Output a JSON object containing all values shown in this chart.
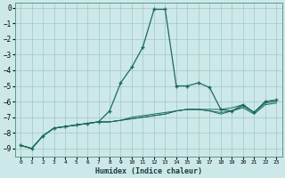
{
  "xlabel": "Humidex (Indice chaleur)",
  "ylabel": "",
  "bg_color": "#cde8e8",
  "grid_color": "#a0c8c8",
  "line_color": "#1a6b5a",
  "xlim": [
    -0.5,
    23.5
  ],
  "ylim": [
    -9.5,
    0.3
  ],
  "yticks": [
    0,
    -1,
    -2,
    -3,
    -4,
    -5,
    -6,
    -7,
    -8,
    -9
  ],
  "xticks": [
    0,
    1,
    2,
    3,
    4,
    5,
    6,
    7,
    8,
    9,
    10,
    11,
    12,
    13,
    14,
    15,
    16,
    17,
    18,
    19,
    20,
    21,
    22,
    23
  ],
  "series": [
    {
      "x": [
        0,
        1,
        2,
        3,
        4,
        5,
        6,
        7,
        8,
        9,
        10,
        11,
        12,
        13,
        14,
        15,
        16,
        17,
        18,
        19,
        20,
        21,
        22,
        23
      ],
      "y": [
        -8.8,
        -9.0,
        -8.2,
        -7.7,
        -7.6,
        -7.5,
        -7.4,
        -7.3,
        -6.6,
        -4.8,
        -3.8,
        -2.5,
        -0.1,
        -0.1,
        -5.0,
        -5.0,
        -4.8,
        -5.1,
        -6.5,
        -6.6,
        -6.2,
        -6.7,
        -6.0,
        -5.9
      ],
      "marker": true
    },
    {
      "x": [
        0,
        1,
        2,
        3,
        4,
        5,
        6,
        7,
        8,
        9,
        10,
        11,
        12,
        13,
        14,
        15,
        16,
        17,
        18,
        19,
        20,
        21,
        22,
        23
      ],
      "y": [
        -8.8,
        -9.0,
        -8.2,
        -7.7,
        -7.6,
        -7.5,
        -7.4,
        -7.3,
        -7.3,
        -7.2,
        -7.1,
        -7.0,
        -6.9,
        -6.8,
        -6.6,
        -6.5,
        -6.5,
        -6.5,
        -6.5,
        -6.4,
        -6.2,
        -6.7,
        -6.0,
        -5.9
      ],
      "marker": false
    },
    {
      "x": [
        0,
        1,
        2,
        3,
        4,
        5,
        6,
        7,
        8,
        9,
        10,
        11,
        12,
        13,
        14,
        15,
        16,
        17,
        18,
        19,
        20,
        21,
        22,
        23
      ],
      "y": [
        -8.8,
        -9.0,
        -8.2,
        -7.7,
        -7.6,
        -7.5,
        -7.4,
        -7.3,
        -7.3,
        -7.2,
        -7.1,
        -7.0,
        -6.9,
        -6.8,
        -6.6,
        -6.5,
        -6.5,
        -6.6,
        -6.7,
        -6.6,
        -6.3,
        -6.7,
        -6.1,
        -6.0
      ],
      "marker": false
    },
    {
      "x": [
        0,
        1,
        2,
        3,
        4,
        5,
        6,
        7,
        8,
        9,
        10,
        11,
        12,
        13,
        14,
        15,
        16,
        17,
        18,
        19,
        20,
        21,
        22,
        23
      ],
      "y": [
        -8.8,
        -9.0,
        -8.2,
        -7.7,
        -7.6,
        -7.5,
        -7.4,
        -7.3,
        -7.3,
        -7.2,
        -7.0,
        -6.9,
        -6.8,
        -6.7,
        -6.6,
        -6.5,
        -6.5,
        -6.6,
        -6.8,
        -6.6,
        -6.4,
        -6.8,
        -6.2,
        -6.1
      ],
      "marker": false
    }
  ]
}
